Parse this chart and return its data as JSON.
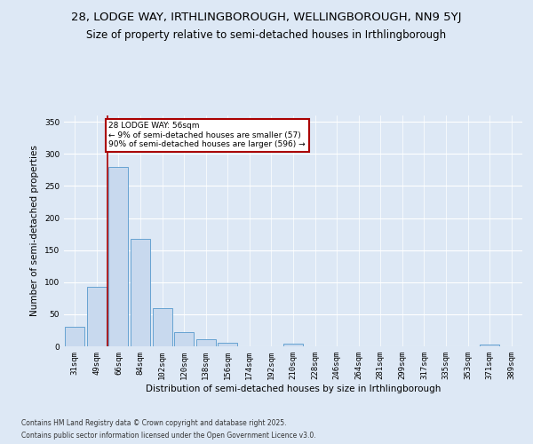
{
  "title": "28, LODGE WAY, IRTHLINGBOROUGH, WELLINGBOROUGH, NN9 5YJ",
  "subtitle": "Size of property relative to semi-detached houses in Irthlingborough",
  "xlabel": "Distribution of semi-detached houses by size in Irthlingborough",
  "ylabel": "Number of semi-detached properties",
  "categories": [
    "31sqm",
    "49sqm",
    "66sqm",
    "84sqm",
    "102sqm",
    "120sqm",
    "138sqm",
    "156sqm",
    "174sqm",
    "192sqm",
    "210sqm",
    "228sqm",
    "246sqm",
    "264sqm",
    "281sqm",
    "299sqm",
    "317sqm",
    "335sqm",
    "353sqm",
    "371sqm",
    "389sqm"
  ],
  "values": [
    30,
    93,
    280,
    167,
    60,
    22,
    11,
    5,
    0,
    0,
    4,
    0,
    0,
    0,
    0,
    0,
    0,
    0,
    0,
    3,
    0
  ],
  "bar_color": "#c8d9ee",
  "bar_edgecolor": "#5599cc",
  "vline_color": "#aa0000",
  "vline_x_idx": 1.5,
  "annotation_title": "28 LODGE WAY: 56sqm",
  "annotation_line1": "← 9% of semi-detached houses are smaller (57)",
  "annotation_line2": "90% of semi-detached houses are larger (596) →",
  "annotation_box_edgecolor": "#aa0000",
  "ylim": [
    0,
    360
  ],
  "yticks": [
    0,
    50,
    100,
    150,
    200,
    250,
    300,
    350
  ],
  "background_color": "#dde8f5",
  "grid_color": "#ffffff",
  "footer_line1": "Contains HM Land Registry data © Crown copyright and database right 2025.",
  "footer_line2": "Contains public sector information licensed under the Open Government Licence v3.0.",
  "title_fontsize": 9.5,
  "subtitle_fontsize": 8.5,
  "xlabel_fontsize": 7.5,
  "ylabel_fontsize": 7.5,
  "tick_fontsize": 6.5,
  "annot_fontsize": 6.5,
  "footer_fontsize": 5.5
}
